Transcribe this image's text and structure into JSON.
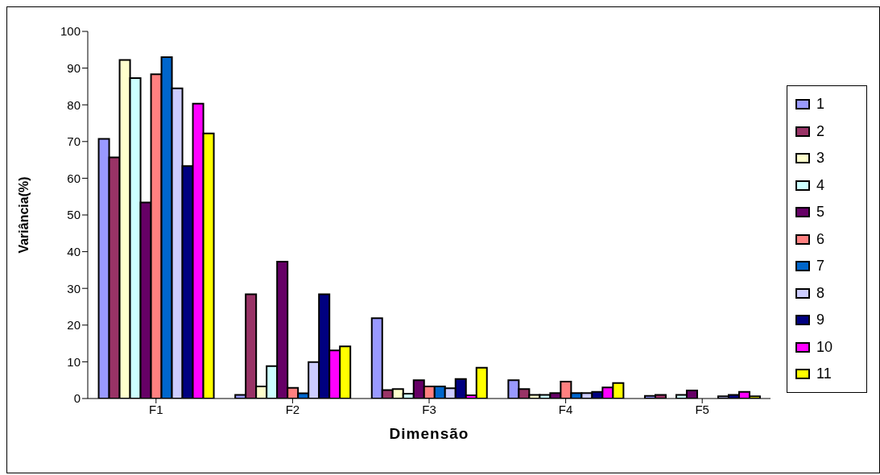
{
  "chart_data": {
    "type": "bar",
    "xlabel": "Dimensão",
    "ylabel": "Variância(%)",
    "categories": [
      "F1",
      "F2",
      "F3",
      "F4",
      "F5"
    ],
    "ylim": [
      0,
      100
    ],
    "yticks": [
      0,
      10,
      20,
      30,
      40,
      50,
      60,
      70,
      80,
      90,
      100
    ],
    "grid": false,
    "legend": "right",
    "series": [
      {
        "name": "1",
        "color": "#9999ff",
        "values": [
          70.7,
          1,
          21.9,
          5,
          0.7
        ]
      },
      {
        "name": "2",
        "color": "#993366",
        "values": [
          65.7,
          28.4,
          2.3,
          2.6,
          1
        ]
      },
      {
        "name": "3",
        "color": "#ffffcc",
        "values": [
          92.2,
          3.3,
          2.6,
          1,
          null
        ]
      },
      {
        "name": "4",
        "color": "#ccffff",
        "values": [
          87.3,
          8.8,
          1.3,
          1,
          1
        ]
      },
      {
        "name": "5",
        "color": "#660066",
        "values": [
          53.4,
          37.3,
          5,
          1.5,
          2.2
        ]
      },
      {
        "name": "6",
        "color": "#ff8080",
        "values": [
          88.3,
          2.9,
          3.3,
          4.6,
          null
        ]
      },
      {
        "name": "7",
        "color": "#0066cc",
        "values": [
          93,
          1.4,
          3.3,
          1.5,
          null
        ]
      },
      {
        "name": "8",
        "color": "#ccccff",
        "values": [
          84.5,
          9.9,
          2.8,
          1.5,
          0.6
        ]
      },
      {
        "name": "9",
        "color": "#000080",
        "values": [
          63.3,
          28.4,
          5.3,
          1.8,
          1
        ]
      },
      {
        "name": "10",
        "color": "#ff00ff",
        "values": [
          80.3,
          13.1,
          0.9,
          3,
          1.8
        ]
      },
      {
        "name": "11",
        "color": "#ffff00",
        "values": [
          72.2,
          14.2,
          8.4,
          4.2,
          0.6
        ]
      }
    ]
  }
}
